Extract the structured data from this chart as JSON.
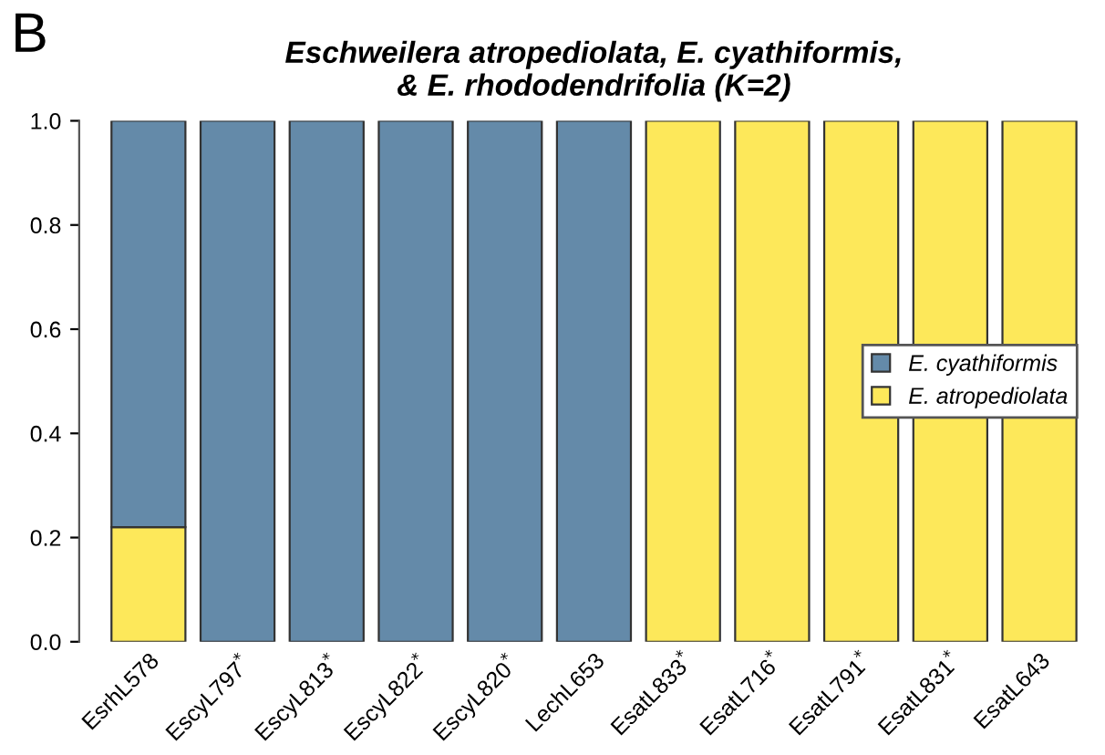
{
  "chart_data": {
    "type": "bar",
    "stacked": true,
    "title": "Eschweilera atropediolata, E. cyathiformis,\n& E. rhododendrifolia (K=2)",
    "annotations": [
      "B"
    ],
    "categories": [
      "EsrhL578",
      "EscyL797$^{*}$",
      "EscyL813$^{*}$",
      "EscyL822$^{*}$",
      "EscyL820$^{*}$",
      "LechL653",
      "EsatL833$^{*}$",
      "EsatL716$^{*}$",
      "EsatL791$^{*}$",
      "EsatL831$^{*}$",
      "EsatL643"
    ],
    "series": [
      {
        "name": "E. atropediolata",
        "color": "#fde85a",
        "values": [
          0.22,
          0,
          0,
          0,
          0,
          0,
          1,
          1,
          1,
          1,
          1
        ]
      },
      {
        "name": "E. cyathiformis",
        "color": "#648aa9",
        "values": [
          0.78,
          1,
          1,
          1,
          1,
          1,
          0,
          0,
          0,
          0,
          0
        ]
      }
    ],
    "ylim": [
      0,
      1
    ],
    "yticks": [
      {
        "value": 0,
        "label": "0.0"
      },
      {
        "value": 0.2,
        "label": "0.2"
      },
      {
        "value": 0.4,
        "label": "0.4"
      },
      {
        "value": 0.6,
        "label": "0.6"
      },
      {
        "value": 0.8,
        "label": "0.8"
      },
      {
        "value": 1,
        "label": "1.0"
      }
    ],
    "legend": "right",
    "grid": false
  }
}
